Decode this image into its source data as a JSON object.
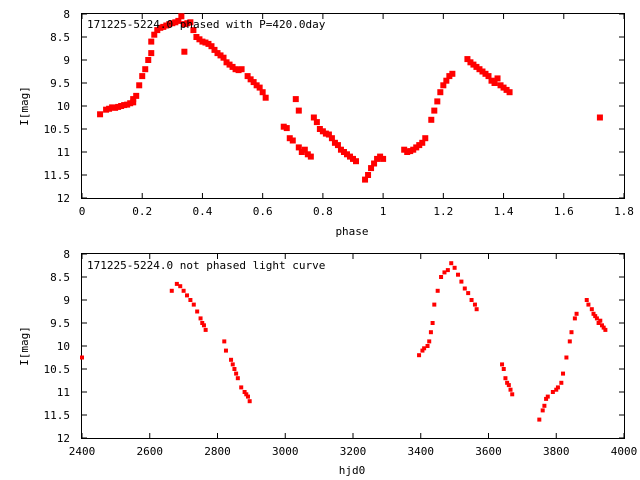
{
  "chart_data": [
    {
      "type": "scatter",
      "title": "171225-5224.0 phased with P=420.0day",
      "xlabel": "phase",
      "ylabel": "I[mag]",
      "xlim": [
        0,
        1.8
      ],
      "ylim": [
        12,
        8
      ],
      "y_inverted": true,
      "x_ticks": [
        "0",
        "0.2",
        "0.4",
        "0.6",
        "0.8",
        "1",
        "1.2",
        "1.4",
        "1.6",
        "1.8"
      ],
      "y_ticks": [
        "8",
        "8.5",
        "9",
        "9.5",
        "10",
        "10.5",
        "11",
        "11.5",
        "12"
      ],
      "marker_color": "#ff0000",
      "series": [
        {
          "points": [
            [
              0.06,
              10.18
            ],
            [
              0.08,
              10.08
            ],
            [
              0.09,
              10.06
            ],
            [
              0.1,
              10.03
            ],
            [
              0.11,
              10.04
            ],
            [
              0.12,
              10.02
            ],
            [
              0.13,
              10.0
            ],
            [
              0.14,
              9.98
            ],
            [
              0.15,
              9.97
            ],
            [
              0.16,
              9.94
            ],
            [
              0.17,
              9.92
            ],
            [
              0.17,
              9.85
            ],
            [
              0.18,
              9.78
            ],
            [
              0.19,
              9.55
            ],
            [
              0.2,
              9.35
            ],
            [
              0.21,
              9.2
            ],
            [
              0.22,
              9.0
            ],
            [
              0.23,
              8.85
            ],
            [
              0.23,
              8.6
            ],
            [
              0.24,
              8.45
            ],
            [
              0.25,
              8.35
            ],
            [
              0.26,
              8.3
            ],
            [
              0.27,
              8.28
            ],
            [
              0.28,
              8.25
            ],
            [
              0.29,
              8.22
            ],
            [
              0.3,
              8.2
            ],
            [
              0.31,
              8.18
            ],
            [
              0.32,
              8.15
            ],
            [
              0.33,
              8.05
            ],
            [
              0.34,
              8.22
            ],
            [
              0.35,
              8.2
            ],
            [
              0.36,
              8.18
            ],
            [
              0.34,
              8.82
            ],
            [
              0.37,
              8.35
            ],
            [
              0.38,
              8.5
            ],
            [
              0.39,
              8.55
            ],
            [
              0.4,
              8.6
            ],
            [
              0.41,
              8.62
            ],
            [
              0.42,
              8.65
            ],
            [
              0.43,
              8.7
            ],
            [
              0.44,
              8.78
            ],
            [
              0.45,
              8.85
            ],
            [
              0.46,
              8.9
            ],
            [
              0.47,
              8.95
            ],
            [
              0.48,
              9.05
            ],
            [
              0.49,
              9.1
            ],
            [
              0.5,
              9.15
            ],
            [
              0.51,
              9.2
            ],
            [
              0.52,
              9.22
            ],
            [
              0.53,
              9.2
            ],
            [
              0.55,
              9.35
            ],
            [
              0.56,
              9.42
            ],
            [
              0.57,
              9.48
            ],
            [
              0.58,
              9.55
            ],
            [
              0.59,
              9.6
            ],
            [
              0.6,
              9.7
            ],
            [
              0.61,
              9.82
            ],
            [
              0.67,
              10.45
            ],
            [
              0.68,
              10.48
            ],
            [
              0.69,
              10.7
            ],
            [
              0.7,
              10.75
            ],
            [
              0.71,
              9.85
            ],
            [
              0.72,
              10.1
            ],
            [
              0.72,
              10.9
            ],
            [
              0.73,
              11.0
            ],
            [
              0.74,
              10.95
            ],
            [
              0.75,
              11.05
            ],
            [
              0.76,
              11.1
            ],
            [
              0.77,
              10.25
            ],
            [
              0.78,
              10.35
            ],
            [
              0.79,
              10.5
            ],
            [
              0.8,
              10.55
            ],
            [
              0.81,
              10.6
            ],
            [
              0.82,
              10.62
            ],
            [
              0.83,
              10.7
            ],
            [
              0.84,
              10.8
            ],
            [
              0.85,
              10.85
            ],
            [
              0.86,
              10.95
            ],
            [
              0.87,
              11.0
            ],
            [
              0.88,
              11.05
            ],
            [
              0.89,
              11.1
            ],
            [
              0.9,
              11.15
            ],
            [
              0.91,
              11.2
            ],
            [
              0.94,
              11.6
            ],
            [
              0.95,
              11.5
            ],
            [
              0.96,
              11.35
            ],
            [
              0.97,
              11.25
            ],
            [
              0.98,
              11.15
            ],
            [
              0.99,
              11.1
            ],
            [
              1.0,
              11.15
            ],
            [
              1.07,
              10.95
            ],
            [
              1.08,
              11.0
            ],
            [
              1.09,
              10.98
            ],
            [
              1.1,
              10.95
            ],
            [
              1.11,
              10.9
            ],
            [
              1.12,
              10.85
            ],
            [
              1.13,
              10.8
            ],
            [
              1.14,
              10.7
            ],
            [
              1.16,
              10.3
            ],
            [
              1.17,
              10.1
            ],
            [
              1.18,
              9.9
            ],
            [
              1.19,
              9.7
            ],
            [
              1.2,
              9.55
            ],
            [
              1.21,
              9.45
            ],
            [
              1.22,
              9.35
            ],
            [
              1.23,
              9.3
            ],
            [
              1.28,
              8.98
            ],
            [
              1.29,
              9.05
            ],
            [
              1.3,
              9.1
            ],
            [
              1.31,
              9.15
            ],
            [
              1.32,
              9.2
            ],
            [
              1.33,
              9.25
            ],
            [
              1.34,
              9.3
            ],
            [
              1.35,
              9.35
            ],
            [
              1.36,
              9.45
            ],
            [
              1.37,
              9.5
            ],
            [
              1.38,
              9.4
            ],
            [
              1.39,
              9.55
            ],
            [
              1.4,
              9.6
            ],
            [
              1.41,
              9.65
            ],
            [
              1.42,
              9.7
            ],
            [
              1.72,
              10.25
            ]
          ]
        }
      ]
    },
    {
      "type": "scatter",
      "title": "171225-5224.0 not phased light curve",
      "xlabel": "hjd0",
      "ylabel": "I[mag]",
      "xlim": [
        2400,
        4000
      ],
      "ylim": [
        12,
        8
      ],
      "y_inverted": true,
      "x_ticks": [
        "2400",
        "2600",
        "2800",
        "3000",
        "3200",
        "3400",
        "3600",
        "3800",
        "4000"
      ],
      "y_ticks": [
        "8",
        "8.5",
        "9",
        "9.5",
        "10",
        "10.5",
        "11",
        "11.5",
        "12"
      ],
      "marker_color": "#ff0000",
      "series": [
        {
          "points": [
            [
              2400,
              10.25
            ],
            [
              2665,
              8.8
            ],
            [
              2680,
              8.65
            ],
            [
              2690,
              8.7
            ],
            [
              2700,
              8.8
            ],
            [
              2710,
              8.9
            ],
            [
              2720,
              9.0
            ],
            [
              2730,
              9.1
            ],
            [
              2740,
              9.25
            ],
            [
              2750,
              9.4
            ],
            [
              2755,
              9.5
            ],
            [
              2760,
              9.55
            ],
            [
              2765,
              9.65
            ],
            [
              2820,
              9.9
            ],
            [
              2825,
              10.1
            ],
            [
              2840,
              10.3
            ],
            [
              2845,
              10.4
            ],
            [
              2850,
              10.5
            ],
            [
              2855,
              10.6
            ],
            [
              2860,
              10.7
            ],
            [
              2870,
              10.9
            ],
            [
              2880,
              11.0
            ],
            [
              2885,
              11.05
            ],
            [
              2890,
              11.1
            ],
            [
              2895,
              11.2
            ],
            [
              3395,
              10.2
            ],
            [
              3405,
              10.1
            ],
            [
              3410,
              10.05
            ],
            [
              3420,
              10.0
            ],
            [
              3425,
              9.9
            ],
            [
              3430,
              9.7
            ],
            [
              3435,
              9.5
            ],
            [
              3440,
              9.1
            ],
            [
              3450,
              8.8
            ],
            [
              3460,
              8.5
            ],
            [
              3470,
              8.4
            ],
            [
              3480,
              8.35
            ],
            [
              3490,
              8.2
            ],
            [
              3500,
              8.3
            ],
            [
              3510,
              8.45
            ],
            [
              3520,
              8.6
            ],
            [
              3530,
              8.75
            ],
            [
              3540,
              8.85
            ],
            [
              3550,
              9.0
            ],
            [
              3560,
              9.1
            ],
            [
              3565,
              9.2
            ],
            [
              3640,
              10.4
            ],
            [
              3645,
              10.5
            ],
            [
              3650,
              10.7
            ],
            [
              3655,
              10.8
            ],
            [
              3660,
              10.85
            ],
            [
              3665,
              10.95
            ],
            [
              3670,
              11.05
            ],
            [
              3750,
              11.6
            ],
            [
              3760,
              11.4
            ],
            [
              3765,
              11.3
            ],
            [
              3770,
              11.15
            ],
            [
              3775,
              11.1
            ],
            [
              3790,
              11.0
            ],
            [
              3800,
              10.95
            ],
            [
              3805,
              10.9
            ],
            [
              3815,
              10.8
            ],
            [
              3820,
              10.6
            ],
            [
              3830,
              10.25
            ],
            [
              3840,
              9.9
            ],
            [
              3845,
              9.7
            ],
            [
              3855,
              9.4
            ],
            [
              3860,
              9.3
            ],
            [
              3890,
              9.0
            ],
            [
              3895,
              9.1
            ],
            [
              3905,
              9.2
            ],
            [
              3910,
              9.3
            ],
            [
              3915,
              9.35
            ],
            [
              3920,
              9.4
            ],
            [
              3925,
              9.5
            ],
            [
              3930,
              9.45
            ],
            [
              3935,
              9.55
            ],
            [
              3940,
              9.6
            ],
            [
              3945,
              9.65
            ]
          ]
        }
      ]
    }
  ]
}
